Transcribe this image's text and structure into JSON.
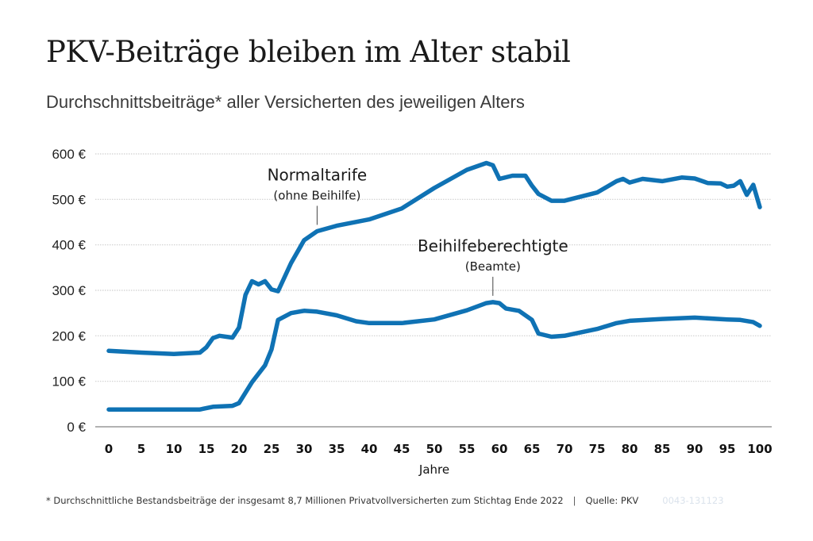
{
  "header": {
    "title": "PKV-Beiträge bleiben im Alter stabil",
    "subtitle": "Durchschnittsbeiträge* aller Versicherten des jeweiligen Alters"
  },
  "footer": {
    "note": "* Durchschnittliche Bestandsbeiträge der insgesamt 8,7 Millionen Privatvollversicherten zum Stichtag Ende 2022",
    "separator": "|",
    "source": "Quelle: PKV",
    "code": "0043-131123"
  },
  "colors": {
    "line": "#0f72b4",
    "grid": "#cfcfcf",
    "axis": "#999999",
    "text": "#1a1a1a"
  },
  "chart_data": {
    "type": "line",
    "title": "PKV-Beiträge bleiben im Alter stabil",
    "subtitle": "Durchschnittsbeiträge* aller Versicherten des jeweiligen Alters",
    "xlabel": "Jahre",
    "ylabel": "",
    "xlim": [
      0,
      100
    ],
    "ylim": [
      0,
      600
    ],
    "xticks": [
      0,
      5,
      10,
      15,
      20,
      25,
      30,
      35,
      40,
      45,
      50,
      55,
      60,
      65,
      70,
      75,
      80,
      85,
      90,
      95,
      100
    ],
    "yticks": [
      0,
      100,
      200,
      300,
      400,
      500,
      600
    ],
    "ytick_labels": [
      "0 €",
      "100 €",
      "200 €",
      "300 €",
      "400 €",
      "500 €",
      "600 €"
    ],
    "grid": true,
    "legend": "none",
    "series": [
      {
        "name": "Normaltarife",
        "annotation_main": "Normaltarife",
        "annotation_sub": "(ohne Beihilfe)",
        "annotation_x": 32,
        "annotation_y": 430,
        "x": [
          0,
          5,
          10,
          14,
          15,
          16,
          17,
          19,
          20,
          21,
          22,
          23,
          24,
          25,
          26,
          28,
          30,
          32,
          35,
          40,
          45,
          50,
          55,
          58,
          59,
          60,
          62,
          64,
          65,
          66,
          68,
          70,
          75,
          78,
          79,
          80,
          82,
          85,
          88,
          90,
          92,
          94,
          95,
          96,
          97,
          98,
          99,
          100
        ],
        "values": [
          167,
          163,
          160,
          163,
          175,
          195,
          200,
          196,
          218,
          290,
          320,
          313,
          320,
          302,
          298,
          360,
          410,
          430,
          442,
          456,
          480,
          525,
          565,
          580,
          575,
          545,
          552,
          552,
          530,
          512,
          497,
          497,
          515,
          540,
          545,
          537,
          545,
          540,
          548,
          546,
          536,
          535,
          528,
          530,
          540,
          510,
          532,
          483
        ]
      },
      {
        "name": "Beihilfeberechtigte",
        "annotation_main": "Beihilfeberechtigte",
        "annotation_sub": "(Beamte)",
        "annotation_x": 59,
        "annotation_y": 274,
        "x": [
          0,
          5,
          10,
          14,
          16,
          19,
          20,
          22,
          24,
          25,
          26,
          28,
          30,
          32,
          35,
          38,
          40,
          45,
          50,
          55,
          58,
          59,
          60,
          61,
          63,
          65,
          66,
          68,
          70,
          75,
          78,
          80,
          85,
          90,
          95,
          97,
          99,
          100
        ],
        "values": [
          38,
          38,
          38,
          38,
          44,
          46,
          52,
          98,
          135,
          170,
          235,
          250,
          255,
          253,
          245,
          232,
          228,
          228,
          236,
          256,
          272,
          274,
          272,
          260,
          255,
          235,
          205,
          198,
          200,
          215,
          228,
          233,
          237,
          240,
          236,
          235,
          230,
          222
        ]
      }
    ]
  }
}
